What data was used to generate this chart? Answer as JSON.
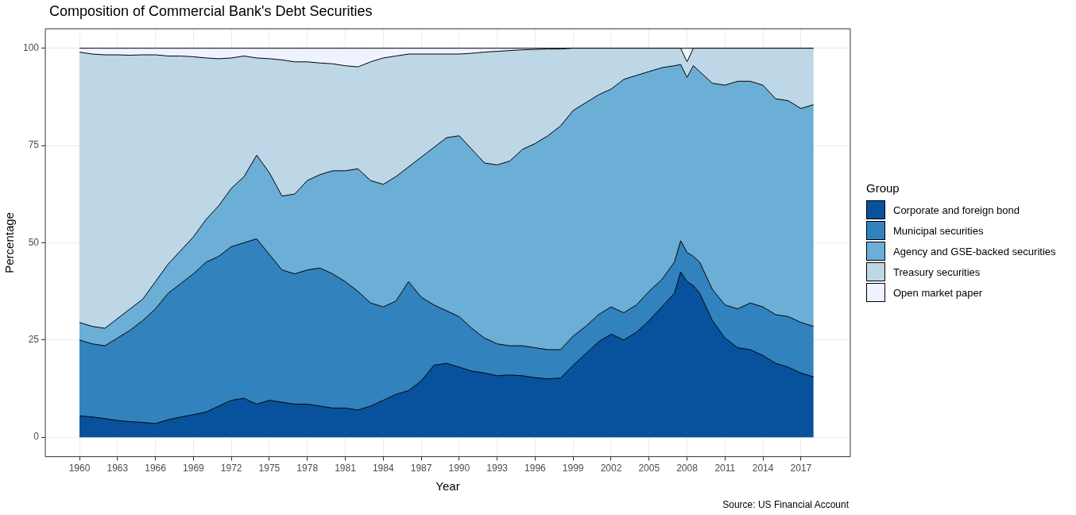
{
  "chart_data": {
    "type": "area",
    "stacked": true,
    "title": "Composition of Commercial Bank's Debt Securities",
    "xlabel": "Year",
    "ylabel": "Percentage",
    "legend_title": "Group",
    "legend": "right",
    "grid": true,
    "annotations": [
      "Source: US Financial Account"
    ],
    "xlim": [
      1957.3,
      2020.9
    ],
    "xticks": [
      1960,
      1963,
      1966,
      1969,
      1972,
      1975,
      1978,
      1981,
      1984,
      1987,
      1990,
      1993,
      1996,
      1999,
      2002,
      2005,
      2008,
      2011,
      2014,
      2017
    ],
    "ylim": [
      -5,
      105
    ],
    "yticks": [
      0,
      25,
      50,
      75,
      100
    ],
    "x": [
      1960,
      1961,
      1962,
      1963,
      1964,
      1965,
      1966,
      1967,
      1968,
      1969,
      1970,
      1971,
      1972,
      1973,
      1974,
      1975,
      1976,
      1977,
      1978,
      1979,
      1980,
      1981,
      1982,
      1983,
      1984,
      1985,
      1986,
      1987,
      1988,
      1989,
      1990,
      1991,
      1992,
      1993,
      1994,
      1995,
      1996,
      1997,
      1998,
      1999,
      2000,
      2001,
      2002,
      2003,
      2004,
      2005,
      2006,
      2007,
      2007.5,
      2008,
      2008.5,
      2009,
      2010,
      2011,
      2012,
      2013,
      2014,
      2015,
      2016,
      2017,
      2018
    ],
    "series": [
      {
        "name": "Corporate and foreign bond",
        "color": "#08519c",
        "values": [
          5.5,
          5.2,
          4.8,
          4.3,
          4,
          3.8,
          3.5,
          4.5,
          5.2,
          5.8,
          6.5,
          8,
          9.5,
          10,
          8.5,
          9.5,
          9,
          8.5,
          8.5,
          8,
          7.5,
          7.5,
          7,
          8,
          9.5,
          11,
          12,
          14.5,
          18.5,
          19,
          18,
          17,
          16.5,
          15.8,
          16,
          15.8,
          15.3,
          15,
          15.2,
          18.5,
          21.5,
          24.5,
          26.5,
          25,
          27,
          30,
          33.5,
          37,
          42.5,
          40,
          39,
          37,
          30,
          25.5,
          23,
          22.5,
          21,
          19,
          18,
          16.5,
          15.5
        ]
      },
      {
        "name": "Municipal securities",
        "color": "#3182bd",
        "values": [
          19.5,
          18.8,
          18.7,
          21.2,
          23.5,
          26.2,
          29.5,
          32.5,
          34.3,
          36.2,
          38.5,
          38.5,
          39.5,
          40,
          42.5,
          37.5,
          34,
          33.5,
          34.5,
          35.5,
          34.5,
          32.5,
          30.5,
          26.5,
          24,
          24,
          28,
          21.5,
          15.5,
          13.5,
          13,
          11,
          9,
          8.2,
          7.5,
          7.7,
          7.7,
          7.5,
          7.3,
          7.5,
          7,
          7,
          7,
          7,
          7,
          7.5,
          7,
          8,
          8,
          7.5,
          7.5,
          8,
          8,
          8.5,
          10,
          12,
          12.5,
          12.5,
          13,
          13,
          13
        ]
      },
      {
        "name": "Agency and GSE-backed securities",
        "color": "#6baed6",
        "values": [
          4.5,
          4.5,
          4.5,
          5,
          5.5,
          5.5,
          7,
          7.5,
          8.5,
          9.5,
          11,
          13,
          15,
          17,
          21.5,
          21,
          19,
          20.5,
          23,
          24,
          26.5,
          28.5,
          31.5,
          31.5,
          31.5,
          32,
          29.5,
          36,
          40.5,
          44.5,
          46.5,
          46,
          45,
          46,
          47.5,
          50.5,
          52.5,
          55,
          57.5,
          58,
          57.5,
          56.5,
          56,
          60,
          59,
          56.5,
          54.5,
          50.5,
          45.3,
          45,
          49,
          49,
          53,
          56.5,
          58.5,
          57,
          57,
          55.5,
          55.5,
          55,
          57
        ]
      },
      {
        "name": "Treasury securities",
        "color": "#bdd7e7",
        "values": [
          69.5,
          70,
          70.3,
          67.8,
          65.2,
          62.8,
          58.3,
          53.5,
          50,
          46.3,
          41.5,
          37.8,
          33.5,
          31,
          25,
          29.3,
          35,
          34,
          30.5,
          28.7,
          27.5,
          27,
          26.2,
          30.5,
          32.5,
          31,
          29,
          26.5,
          24,
          21.5,
          21,
          24.7,
          28.5,
          29.2,
          28.4,
          25.6,
          24.2,
          22.3,
          19.8,
          16,
          14,
          12,
          10.5,
          8,
          7,
          6,
          5,
          4.5,
          4.2,
          4,
          4.5,
          6,
          9,
          9.5,
          8.5,
          8.5,
          9.5,
          13,
          13.5,
          15.5,
          14.5
        ]
      },
      {
        "name": "Open market paper",
        "color": "#eff3ff",
        "values": [
          1,
          1.5,
          1.7,
          1.7,
          1.8,
          1.7,
          1.7,
          2,
          2,
          2.2,
          2.5,
          2.7,
          2.5,
          2,
          2.5,
          2.7,
          3,
          3.5,
          3.5,
          3.8,
          4,
          4.5,
          4.8,
          3.5,
          2.5,
          2,
          1.5,
          1.5,
          1.5,
          1.5,
          1.5,
          1.3,
          1,
          0.8,
          0.6,
          0.4,
          0.3,
          0.2,
          0.2,
          0,
          0,
          0,
          0,
          0,
          0,
          0,
          0,
          0,
          0,
          3.5,
          0,
          0,
          0,
          0,
          0,
          0,
          0,
          0,
          0,
          0,
          0
        ]
      }
    ]
  }
}
